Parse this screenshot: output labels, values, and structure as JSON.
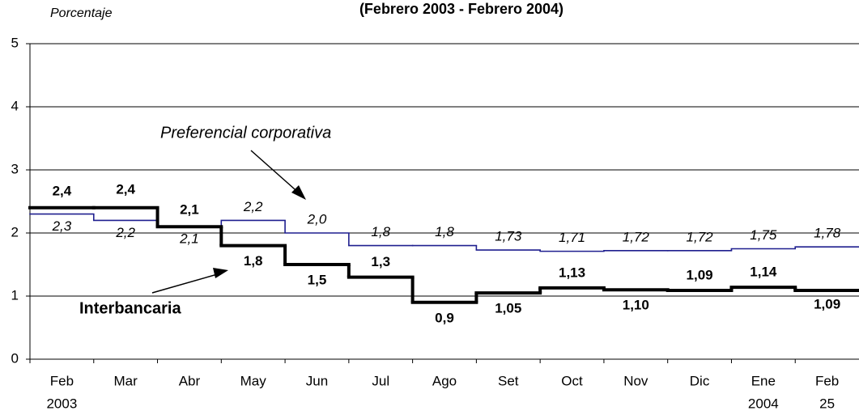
{
  "chart_data": {
    "type": "step",
    "title": "(Febrero 2003 - Febrero 2004)",
    "y_label": "Porcentaje",
    "categories": [
      [
        "Feb",
        "2003"
      ],
      [
        "Mar"
      ],
      [
        "Abr"
      ],
      [
        "May"
      ],
      [
        "Jun"
      ],
      [
        "Jul"
      ],
      [
        "Ago"
      ],
      [
        "Set"
      ],
      [
        "Oct"
      ],
      [
        "Nov"
      ],
      [
        "Dic"
      ],
      [
        "Ene",
        "2004"
      ],
      [
        "Feb",
        "25"
      ]
    ],
    "ylim": [
      0,
      5
    ],
    "yticks": [
      0,
      1,
      2,
      3,
      4,
      5
    ],
    "grid": true,
    "series": [
      {
        "name": "Preferencial corporativa",
        "color": "#1f1f8f",
        "values": [
          2.3,
          2.2,
          2.1,
          2.2,
          2.0,
          1.8,
          1.8,
          1.73,
          1.71,
          1.72,
          1.72,
          1.75,
          1.78
        ],
        "value_labels": [
          "2,3",
          "2,2",
          "2,1",
          "2,2",
          "2,0",
          "1,8",
          "1,8",
          "1,73",
          "1,71",
          "1,72",
          "1,72",
          "1,75",
          "1,78"
        ]
      },
      {
        "name": "Interbancaria",
        "color": "#000000",
        "values": [
          2.4,
          2.4,
          2.1,
          1.8,
          1.5,
          1.3,
          0.9,
          1.05,
          1.13,
          1.1,
          1.09,
          1.14,
          1.09
        ],
        "value_labels": [
          "2,4",
          "2,4",
          "2,1",
          "1,8",
          "1,5",
          "1,3",
          "0,9",
          "1,05",
          "1,13",
          "1,10",
          "1,09",
          "1,14",
          "1,09"
        ]
      }
    ]
  }
}
